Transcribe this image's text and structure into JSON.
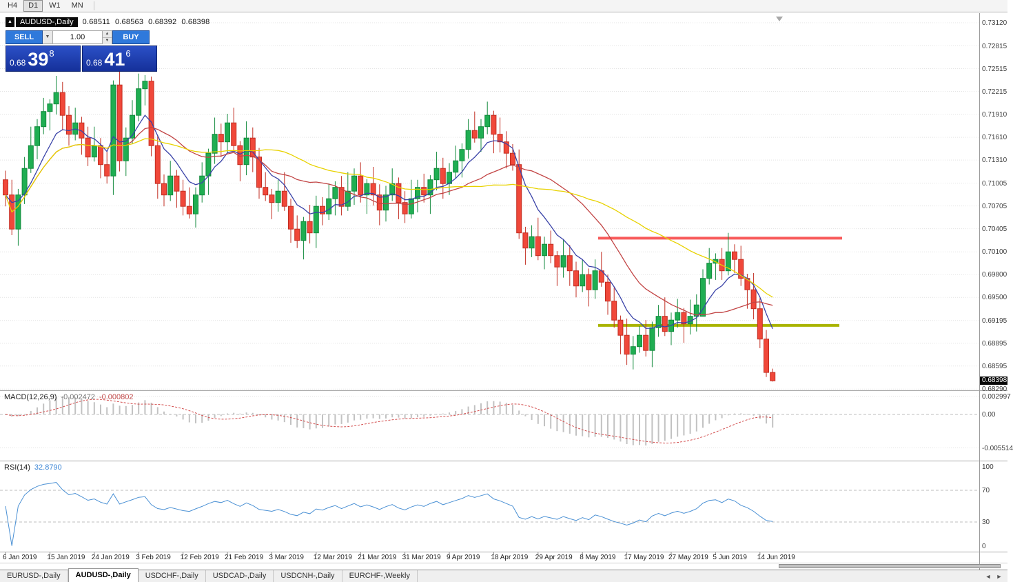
{
  "toolbar": {
    "timeframes": [
      {
        "label": "H4",
        "active": false
      },
      {
        "label": "D1",
        "active": true
      },
      {
        "label": "W1",
        "active": false
      },
      {
        "label": "MN",
        "active": false
      }
    ]
  },
  "chart_header": {
    "symbol_label": "AUDUSD-,Daily",
    "open": "0.68511",
    "high": "0.68563",
    "low": "0.68392",
    "close": "0.68398",
    "collapse_icon": "▲"
  },
  "trade_panel": {
    "sell_label": "SELL",
    "buy_label": "BUY",
    "volume": "1.00",
    "bid": {
      "small": "0.68",
      "big": "39",
      "sup": "8"
    },
    "ask": {
      "small": "0.68",
      "big": "41",
      "sup": "6"
    }
  },
  "price_axis": {
    "labels": [
      0.7312,
      0.72815,
      0.72515,
      0.72215,
      0.7191,
      0.7161,
      0.7131,
      0.71005,
      0.70705,
      0.70405,
      0.701,
      0.698,
      0.695,
      0.69195,
      0.68895,
      0.68595,
      0.6829
    ],
    "current": "0.68398",
    "current_value": 0.68398
  },
  "indicators": {
    "macd": {
      "label": "MACD(12,26,9)",
      "value1": "-0.002472",
      "value2": "-0.000802",
      "axis_values": [
        0.002997,
        0,
        -0.005514
      ],
      "axis_labels": [
        "0.002997",
        "0.00",
        "-0.005514"
      ],
      "fast": 12,
      "slow": 26,
      "signal": 9
    },
    "rsi": {
      "label": "RSI(14)",
      "value": "32.8790",
      "axis_values": [
        100,
        70,
        30,
        0
      ],
      "axis_labels": [
        "100",
        "70",
        "30",
        "0"
      ],
      "levels": [
        70,
        30
      ],
      "period": 14
    }
  },
  "chart_data": {
    "type": "candlestick",
    "symbol": "AUDUSD",
    "timeframe": "Daily",
    "ylim": [
      0.6829,
      0.7312
    ],
    "grid": true,
    "ohlc": [
      [
        0.7105,
        0.7117,
        0.707,
        0.7085
      ],
      [
        0.7085,
        0.7105,
        0.7032,
        0.704
      ],
      [
        0.704,
        0.7093,
        0.7018,
        0.7085
      ],
      [
        0.7085,
        0.7135,
        0.7073,
        0.712
      ],
      [
        0.712,
        0.7175,
        0.7114,
        0.715
      ],
      [
        0.715,
        0.7185,
        0.7132,
        0.7175
      ],
      [
        0.7175,
        0.7213,
        0.7165,
        0.7195
      ],
      [
        0.7195,
        0.7211,
        0.717,
        0.7205
      ],
      [
        0.7205,
        0.7242,
        0.7191,
        0.722
      ],
      [
        0.722,
        0.7234,
        0.717,
        0.719
      ],
      [
        0.719,
        0.7202,
        0.715,
        0.7165
      ],
      [
        0.7165,
        0.72,
        0.7157,
        0.718
      ],
      [
        0.718,
        0.7188,
        0.7138,
        0.716
      ],
      [
        0.716,
        0.7175,
        0.7123,
        0.7135
      ],
      [
        0.7135,
        0.7175,
        0.7129,
        0.715
      ],
      [
        0.715,
        0.716,
        0.7107,
        0.7125
      ],
      [
        0.7125,
        0.7143,
        0.71,
        0.711
      ],
      [
        0.711,
        0.7236,
        0.7085,
        0.723
      ],
      [
        0.723,
        0.7252,
        0.7116,
        0.713
      ],
      [
        0.713,
        0.7174,
        0.711,
        0.716
      ],
      [
        0.716,
        0.721,
        0.7152,
        0.719
      ],
      [
        0.719,
        0.7245,
        0.7182,
        0.7225
      ],
      [
        0.7225,
        0.7243,
        0.7203,
        0.7235
      ],
      [
        0.7235,
        0.7241,
        0.7136,
        0.715
      ],
      [
        0.715,
        0.7164,
        0.708,
        0.71
      ],
      [
        0.71,
        0.7112,
        0.707,
        0.7085
      ],
      [
        0.7085,
        0.713,
        0.7077,
        0.711
      ],
      [
        0.711,
        0.7118,
        0.7068,
        0.709
      ],
      [
        0.709,
        0.7105,
        0.7058,
        0.707
      ],
      [
        0.707,
        0.7095,
        0.7054,
        0.706
      ],
      [
        0.706,
        0.7095,
        0.7042,
        0.7085
      ],
      [
        0.7085,
        0.7128,
        0.7075,
        0.711
      ],
      [
        0.711,
        0.7146,
        0.7085,
        0.714
      ],
      [
        0.714,
        0.7187,
        0.7126,
        0.7165
      ],
      [
        0.7165,
        0.7179,
        0.7135,
        0.7155
      ],
      [
        0.7155,
        0.7192,
        0.714,
        0.718
      ],
      [
        0.718,
        0.72,
        0.7142,
        0.715
      ],
      [
        0.715,
        0.7156,
        0.7103,
        0.7125
      ],
      [
        0.7125,
        0.7182,
        0.7111,
        0.716
      ],
      [
        0.716,
        0.7174,
        0.7115,
        0.7135
      ],
      [
        0.7135,
        0.7147,
        0.708,
        0.7095
      ],
      [
        0.7095,
        0.7115,
        0.7077,
        0.7085
      ],
      [
        0.7085,
        0.7093,
        0.7053,
        0.7075
      ],
      [
        0.7075,
        0.7105,
        0.7063,
        0.709
      ],
      [
        0.709,
        0.7115,
        0.7064,
        0.707
      ],
      [
        0.707,
        0.708,
        0.7022,
        0.704
      ],
      [
        0.704,
        0.7058,
        0.7015,
        0.7025
      ],
      [
        0.7025,
        0.7056,
        0.7,
        0.705
      ],
      [
        0.705,
        0.7072,
        0.7021,
        0.7035
      ],
      [
        0.7035,
        0.7084,
        0.7015,
        0.707
      ],
      [
        0.707,
        0.7082,
        0.7045,
        0.706
      ],
      [
        0.706,
        0.71,
        0.7052,
        0.708
      ],
      [
        0.708,
        0.7103,
        0.7058,
        0.7095
      ],
      [
        0.7095,
        0.711,
        0.7058,
        0.707
      ],
      [
        0.707,
        0.7115,
        0.7064,
        0.709
      ],
      [
        0.709,
        0.712,
        0.7072,
        0.711
      ],
      [
        0.711,
        0.7128,
        0.7075,
        0.7085
      ],
      [
        0.7085,
        0.7106,
        0.706,
        0.71
      ],
      [
        0.71,
        0.7122,
        0.7071,
        0.7085
      ],
      [
        0.7085,
        0.7099,
        0.7045,
        0.7065
      ],
      [
        0.7065,
        0.7097,
        0.705,
        0.7085
      ],
      [
        0.7085,
        0.712,
        0.7077,
        0.71
      ],
      [
        0.71,
        0.7108,
        0.7053,
        0.7075
      ],
      [
        0.7075,
        0.709,
        0.7048,
        0.706
      ],
      [
        0.706,
        0.7105,
        0.7054,
        0.708
      ],
      [
        0.708,
        0.7105,
        0.7062,
        0.7095
      ],
      [
        0.7095,
        0.7113,
        0.7075,
        0.7085
      ],
      [
        0.7085,
        0.7111,
        0.706,
        0.7105
      ],
      [
        0.7105,
        0.7142,
        0.7091,
        0.712
      ],
      [
        0.712,
        0.7134,
        0.708,
        0.71
      ],
      [
        0.71,
        0.7127,
        0.7085,
        0.7115
      ],
      [
        0.7115,
        0.715,
        0.7107,
        0.713
      ],
      [
        0.713,
        0.7153,
        0.7108,
        0.7145
      ],
      [
        0.7145,
        0.7185,
        0.7133,
        0.717
      ],
      [
        0.717,
        0.7195,
        0.7154,
        0.716
      ],
      [
        0.716,
        0.7185,
        0.7142,
        0.7175
      ],
      [
        0.7175,
        0.7208,
        0.7165,
        0.719
      ],
      [
        0.719,
        0.7196,
        0.714,
        0.7165
      ],
      [
        0.7165,
        0.7187,
        0.7141,
        0.7155
      ],
      [
        0.7155,
        0.7169,
        0.712,
        0.714
      ],
      [
        0.714,
        0.7152,
        0.7117,
        0.7125
      ],
      [
        0.7125,
        0.7145,
        0.7027,
        0.7035
      ],
      [
        0.7035,
        0.7043,
        0.6993,
        0.7015
      ],
      [
        0.7015,
        0.7045,
        0.7003,
        0.703
      ],
      [
        0.703,
        0.7055,
        0.6999,
        0.7005
      ],
      [
        0.7005,
        0.703,
        0.6987,
        0.702
      ],
      [
        0.702,
        0.7038,
        0.6995,
        0.7005
      ],
      [
        0.7005,
        0.7011,
        0.6965,
        0.699
      ],
      [
        0.699,
        0.7027,
        0.6976,
        0.7005
      ],
      [
        0.7005,
        0.7019,
        0.6965,
        0.6985
      ],
      [
        0.6985,
        0.6997,
        0.695,
        0.6965
      ],
      [
        0.6965,
        0.7,
        0.6957,
        0.698
      ],
      [
        0.698,
        0.6988,
        0.6938,
        0.696
      ],
      [
        0.696,
        0.7,
        0.6948,
        0.6985
      ],
      [
        0.6985,
        0.701,
        0.6964,
        0.697
      ],
      [
        0.697,
        0.698,
        0.6927,
        0.6945
      ],
      [
        0.6945,
        0.6963,
        0.691,
        0.692
      ],
      [
        0.692,
        0.6926,
        0.6875,
        0.69
      ],
      [
        0.69,
        0.6922,
        0.6861,
        0.6875
      ],
      [
        0.6875,
        0.6899,
        0.6855,
        0.6885
      ],
      [
        0.6885,
        0.6912,
        0.6877,
        0.69
      ],
      [
        0.69,
        0.692,
        0.6872,
        0.688
      ],
      [
        0.688,
        0.6918,
        0.6858,
        0.691
      ],
      [
        0.691,
        0.694,
        0.6898,
        0.6925
      ],
      [
        0.6925,
        0.695,
        0.6899,
        0.6905
      ],
      [
        0.6905,
        0.693,
        0.6887,
        0.692
      ],
      [
        0.692,
        0.6948,
        0.691,
        0.693
      ],
      [
        0.693,
        0.6936,
        0.689,
        0.6915
      ],
      [
        0.6915,
        0.6947,
        0.6901,
        0.6925
      ],
      [
        0.6925,
        0.6954,
        0.6905,
        0.694
      ],
      [
        0.6925,
        0.6987,
        0.6925,
        0.6975
      ],
      [
        0.6975,
        0.7015,
        0.6967,
        0.6995
      ],
      [
        0.6995,
        0.7008,
        0.6973,
        0.7
      ],
      [
        0.7,
        0.7015,
        0.6973,
        0.6985
      ],
      [
        0.6985,
        0.7035,
        0.6979,
        0.701
      ],
      [
        0.701,
        0.702,
        0.6982,
        0.7
      ],
      [
        0.7,
        0.7018,
        0.6965,
        0.6975
      ],
      [
        0.6975,
        0.6981,
        0.6935,
        0.696
      ],
      [
        0.696,
        0.6982,
        0.6921,
        0.6935
      ],
      [
        0.6935,
        0.6949,
        0.6883,
        0.6895
      ],
      [
        0.6895,
        0.6907,
        0.6845,
        0.6851
      ],
      [
        0.6851,
        0.6856,
        0.6839,
        0.684
      ]
    ],
    "x_labels": [
      "6 Jan 2019",
      "15 Jan 2019",
      "24 Jan 2019",
      "3 Feb 2019",
      "12 Feb 2019",
      "21 Feb 2019",
      "3 Mar 2019",
      "12 Mar 2019",
      "21 Mar 2019",
      "31 Mar 2019",
      "9 Apr 2019",
      "18 Apr 2019",
      "29 Apr 2019",
      "8 May 2019",
      "17 May 2019",
      "27 May 2019",
      "5 Jun 2019",
      "14 Jun 2019"
    ],
    "x_label_indices": [
      0,
      7,
      14,
      21,
      28,
      35,
      42,
      49,
      56,
      63,
      70,
      77,
      84,
      91,
      98,
      105,
      112,
      119
    ],
    "moving_averages": [
      {
        "name": "ma-fast",
        "period": 8,
        "method": "ema",
        "color": "#3a43a8"
      },
      {
        "name": "ma-mid",
        "period": 20,
        "method": "sma",
        "color": "#c24444"
      },
      {
        "name": "ma-slow",
        "period": 40,
        "method": "sma",
        "color": "#e8d200"
      }
    ],
    "hlines": [
      {
        "name": "resistance-line",
        "price": 0.7028,
        "color": "#f85a5a",
        "width": 4,
        "x1": 868,
        "x2": 1222
      },
      {
        "name": "support-line",
        "price": 0.6913,
        "color": "#aab400",
        "width": 4,
        "x1": 868,
        "x2": 1218
      }
    ]
  },
  "tabs": [
    {
      "label": "EURUSD-,Daily",
      "active": false
    },
    {
      "label": "AUDUSD-,Daily",
      "active": true
    },
    {
      "label": "USDCHF-,Daily",
      "active": false
    },
    {
      "label": "USDCAD-,Daily",
      "active": false
    },
    {
      "label": "USDCNH-,Daily",
      "active": false
    },
    {
      "label": "EURCHF-,Weekly",
      "active": false
    }
  ],
  "icons": {
    "volume_dropdown": "▼",
    "spin_up": "▲",
    "spin_down": "▼",
    "shift_marker": "▼",
    "tab_left": "◄",
    "tab_right": "►"
  },
  "colors": {
    "up": "#1fae52",
    "up_border": "#128a3c",
    "down": "#f0483a",
    "down_border": "#c22e22",
    "macd_hist": "#c2c2c2",
    "macd_signal": "#d34f4f",
    "rsi": "#4a90d4",
    "grid": "#e4e4e4",
    "level_dash": "#bdbdbd",
    "axis_text": "#3c3c3c"
  }
}
